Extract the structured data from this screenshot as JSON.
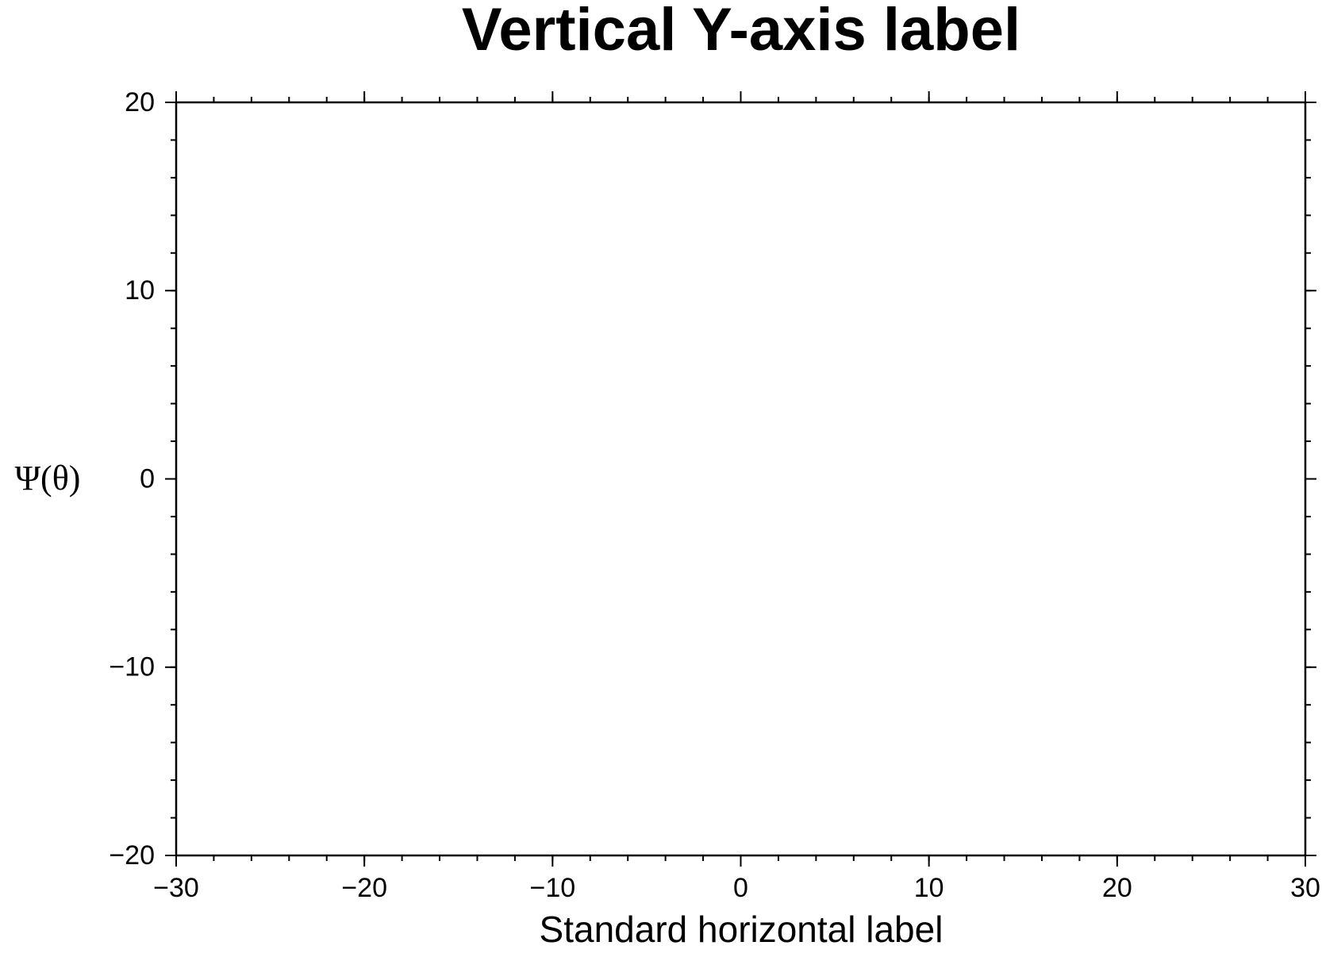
{
  "chart_data": {
    "type": "line",
    "title": "Vertical Y-axis label",
    "x_label": "Standard horizontal label",
    "y_label": "Ψ(θ)",
    "xlim": [
      -30,
      30
    ],
    "xticks": [
      {
        "value": -30,
        "label": "−30"
      },
      {
        "value": -20,
        "label": "−20"
      },
      {
        "value": -10,
        "label": "−10"
      },
      0,
      10,
      20,
      30
    ],
    "ylim": [
      -20,
      20
    ],
    "yticks": [
      {
        "value": -20,
        "label": "−20"
      },
      {
        "value": -10,
        "label": "−10"
      },
      0,
      10,
      20
    ],
    "xminor": 2,
    "yminor": 2,
    "grid": false
  }
}
